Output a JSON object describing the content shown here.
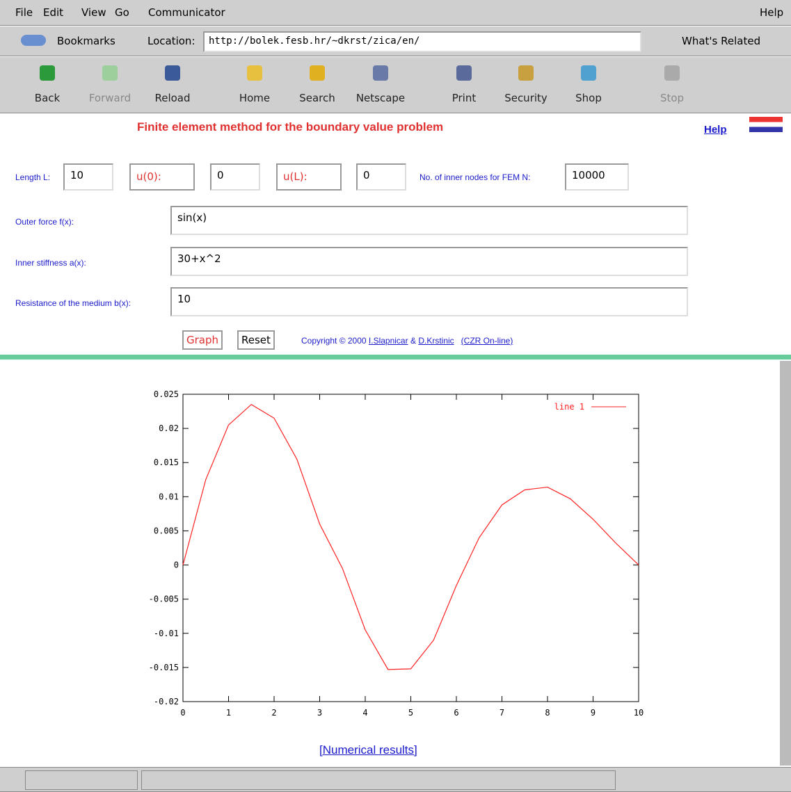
{
  "menu": [
    "File",
    "Edit",
    "View",
    "Go",
    "Communicator",
    "Help"
  ],
  "location_bar": {
    "bookmarks": "Bookmarks",
    "location_label": "Location:",
    "url": "http://bolek.fesb.hr/~dkrst/zica/en/",
    "related": "What's Related"
  },
  "toolbar": [
    "Back",
    "Forward",
    "Reload",
    "Home",
    "Search",
    "Netscape",
    "Print",
    "Security",
    "Shop",
    "Stop"
  ],
  "page": {
    "title": "Finite element method for the boundary value problem",
    "help": "Help",
    "length_label": "Length L:",
    "length": "10",
    "u0_label": "u(0):",
    "u0": "0",
    "uL_label": "u(L):",
    "uL": "0",
    "nodes_label": "No. of inner nodes for FEM N:",
    "nodes": "10000",
    "force_label": "Outer force f(x):",
    "force": "sin(x)",
    "stiffness_label": "Inner stiffness a(x):",
    "stiffness": "30+x^2",
    "resistance_label": "Resistance of the medium b(x):",
    "resistance": "10",
    "graph_button": "Graph",
    "reset_button": "Reset",
    "copyright": "Copyright © 2000",
    "author1": "I.Slapnicar",
    "and": "&",
    "author2": "D.Krstinic",
    "czr": "(CZR On-line)",
    "results_link": "[Numerical results]"
  },
  "chart_data": {
    "type": "line",
    "x": [
      0,
      0.5,
      1,
      1.5,
      2,
      2.5,
      3,
      3.5,
      4,
      4.5,
      5,
      5.5,
      6,
      6.5,
      7,
      7.5,
      8,
      8.5,
      9,
      9.5,
      10
    ],
    "series": [
      {
        "name": "line 1",
        "color": "#ff2020",
        "values": [
          0,
          0.0125,
          0.0205,
          0.0235,
          0.0215,
          0.0155,
          0.006,
          -0.0005,
          -0.0095,
          -0.0153,
          -0.0152,
          -0.011,
          -0.003,
          0.004,
          0.0088,
          0.011,
          0.0114,
          0.0097,
          0.0067,
          0.0032,
          0
        ]
      }
    ],
    "xlim": [
      0,
      10
    ],
    "ylim": [
      -0.02,
      0.025
    ],
    "xticks": [
      0,
      1,
      2,
      3,
      4,
      5,
      6,
      7,
      8,
      9,
      10
    ],
    "yticks": [
      -0.02,
      -0.015,
      -0.01,
      -0.005,
      0,
      0.005,
      0.01,
      0.015,
      0.02,
      0.025
    ],
    "legend": "upper right"
  }
}
